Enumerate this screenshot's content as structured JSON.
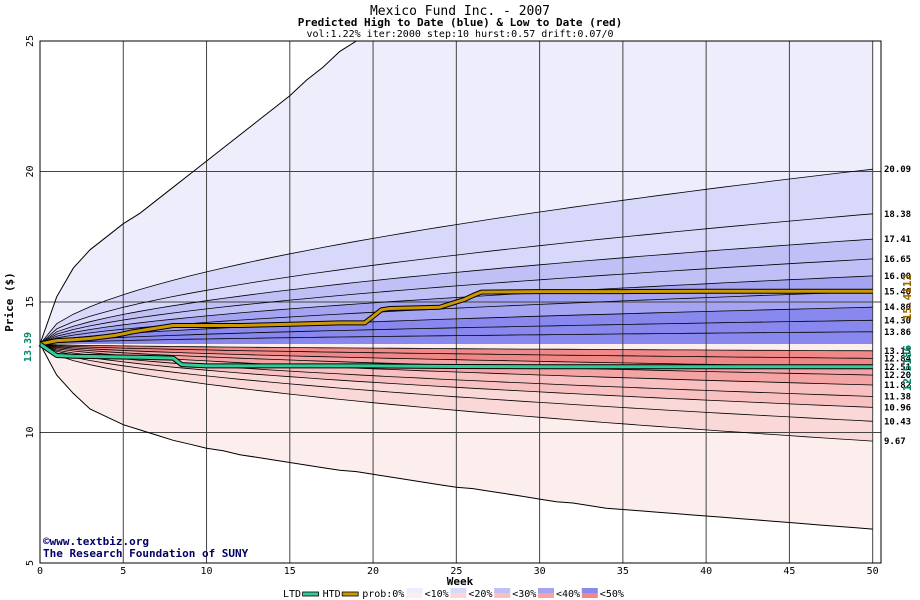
{
  "chart_data": {
    "type": "area",
    "title": "Mexico Fund Inc. - 2007",
    "subtitle": "Predicted High to Date (blue) &  Low to Date (red)",
    "params": "vol:1.22% iter:2000 step:10 hurst:0.57 drift:0.07/0",
    "xlabel": "Week",
    "ylabel": "Price ($)",
    "xlim": [
      0,
      50.5
    ],
    "ylim": [
      5,
      25
    ],
    "x_ticks": [
      0,
      5,
      10,
      15,
      20,
      25,
      30,
      35,
      40,
      45,
      50
    ],
    "y_ticks": [
      5,
      10,
      15,
      20,
      25
    ],
    "grid": true,
    "start_price": 13.39,
    "start_price_label": "13.39",
    "high_end_label": "15.4112",
    "low_end_label": "12.5186",
    "high_upper_envelope": {
      "x": [
        0,
        1,
        2,
        3,
        4,
        5,
        6,
        7,
        8,
        9,
        10,
        11,
        12,
        13,
        14,
        15,
        16,
        17,
        18,
        19,
        20,
        21,
        22,
        23,
        24,
        25,
        26,
        27,
        28,
        29,
        30,
        31,
        32,
        33,
        34,
        35,
        36,
        37,
        38,
        39,
        40,
        41,
        42,
        43,
        44,
        45,
        46,
        47,
        48,
        49,
        50
      ],
      "y": [
        13.39,
        15.2,
        16.3,
        17.0,
        17.5,
        18.0,
        18.4,
        18.9,
        19.4,
        19.9,
        20.4,
        20.9,
        21.4,
        21.9,
        22.4,
        22.9,
        23.5,
        24.0,
        24.6,
        25.0,
        25.0,
        25.0,
        25.0,
        25.0,
        25.0,
        25.0,
        25.0,
        25.0,
        25.0,
        25.0,
        25.0,
        25.0,
        25.0,
        25.0,
        25.0,
        25.0,
        25.0,
        25.0,
        25.0,
        25.0,
        25.0,
        25.0,
        25.0,
        25.0,
        25.0,
        25.0,
        25.0,
        25.0,
        25.0,
        25.0,
        25.0
      ]
    },
    "low_lower_envelope": {
      "x": [
        0,
        1,
        2,
        3,
        4,
        5,
        6,
        7,
        8,
        9,
        10,
        11,
        12,
        13,
        14,
        15,
        16,
        17,
        18,
        19,
        20,
        21,
        22,
        23,
        24,
        25,
        26,
        27,
        28,
        29,
        30,
        31,
        32,
        33,
        34,
        35,
        36,
        37,
        38,
        39,
        40,
        41,
        42,
        43,
        44,
        45,
        46,
        47,
        48,
        49,
        50
      ],
      "y": [
        13.39,
        12.2,
        11.5,
        10.9,
        10.6,
        10.3,
        10.1,
        9.9,
        9.7,
        9.55,
        9.4,
        9.3,
        9.15,
        9.05,
        8.95,
        8.85,
        8.75,
        8.65,
        8.55,
        8.5,
        8.4,
        8.3,
        8.2,
        8.1,
        8.0,
        7.9,
        7.85,
        7.75,
        7.65,
        7.55,
        7.45,
        7.35,
        7.3,
        7.2,
        7.1,
        7.05,
        7.0,
        6.95,
        6.9,
        6.85,
        6.8,
        6.75,
        6.7,
        6.65,
        6.6,
        6.55,
        6.5,
        6.45,
        6.4,
        6.35,
        6.3
      ]
    },
    "high_quantile_end_labels": [
      "20.09",
      "18.38",
      "17.41",
      "16.65",
      "16.00",
      "15.40",
      "14.80",
      "14.30",
      "13.86"
    ],
    "low_quantile_end_labels": [
      "13.13",
      "12.84",
      "12.51",
      "12.20",
      "11.82",
      "11.38",
      "10.96",
      "10.43",
      "9.67"
    ],
    "high_quantiles_end": [
      20.09,
      18.38,
      17.41,
      16.65,
      16.0,
      15.4,
      14.8,
      14.3,
      13.86
    ],
    "low_quantiles_end": [
      13.13,
      12.84,
      12.51,
      12.2,
      11.82,
      11.38,
      10.96,
      10.43,
      9.67
    ],
    "series": [
      {
        "name": "HTD",
        "x": [
          0,
          1,
          2,
          3,
          4,
          4.5,
          5,
          5.5,
          6,
          6.5,
          7,
          8,
          10,
          12,
          15,
          18,
          19.5,
          20,
          20.5,
          21,
          24,
          25,
          25.5,
          26,
          26.5,
          30,
          35,
          40,
          45,
          50
        ],
        "y": [
          13.39,
          13.52,
          13.55,
          13.6,
          13.68,
          13.72,
          13.78,
          13.85,
          13.9,
          13.95,
          14.0,
          14.1,
          14.1,
          14.1,
          14.15,
          14.2,
          14.2,
          14.45,
          14.7,
          14.75,
          14.8,
          15.0,
          15.1,
          15.25,
          15.38,
          15.4,
          15.4,
          15.41,
          15.41,
          15.41
        ]
      },
      {
        "name": "LTD",
        "x": [
          0,
          1,
          2,
          4,
          6,
          8,
          8.5,
          10,
          15,
          20,
          25,
          30,
          35,
          40,
          45,
          50
        ],
        "y": [
          13.39,
          12.95,
          12.92,
          12.9,
          12.88,
          12.85,
          12.6,
          12.55,
          12.55,
          12.55,
          12.53,
          12.52,
          12.52,
          12.52,
          12.52,
          12.52
        ]
      }
    ],
    "legend": {
      "placement": "bottom",
      "items": [
        "LTD",
        "HTD",
        "prob:0%",
        "<10%",
        "<20%",
        "<30%",
        "<40%",
        "<50%"
      ],
      "colors": {
        "LTD": "#33cc99",
        "HTD": "#cc9900",
        "blue": [
          "#ededfc",
          "#d8d8fa",
          "#c0c0f6",
          "#a4a4f2",
          "#8888ee"
        ],
        "red": [
          "#fdeeee",
          "#fbd8d8",
          "#f8c0c0",
          "#f4a4a4",
          "#f08888"
        ]
      }
    },
    "credits": [
      "©www.textbiz.org",
      "The Research Foundation of SUNY"
    ]
  }
}
